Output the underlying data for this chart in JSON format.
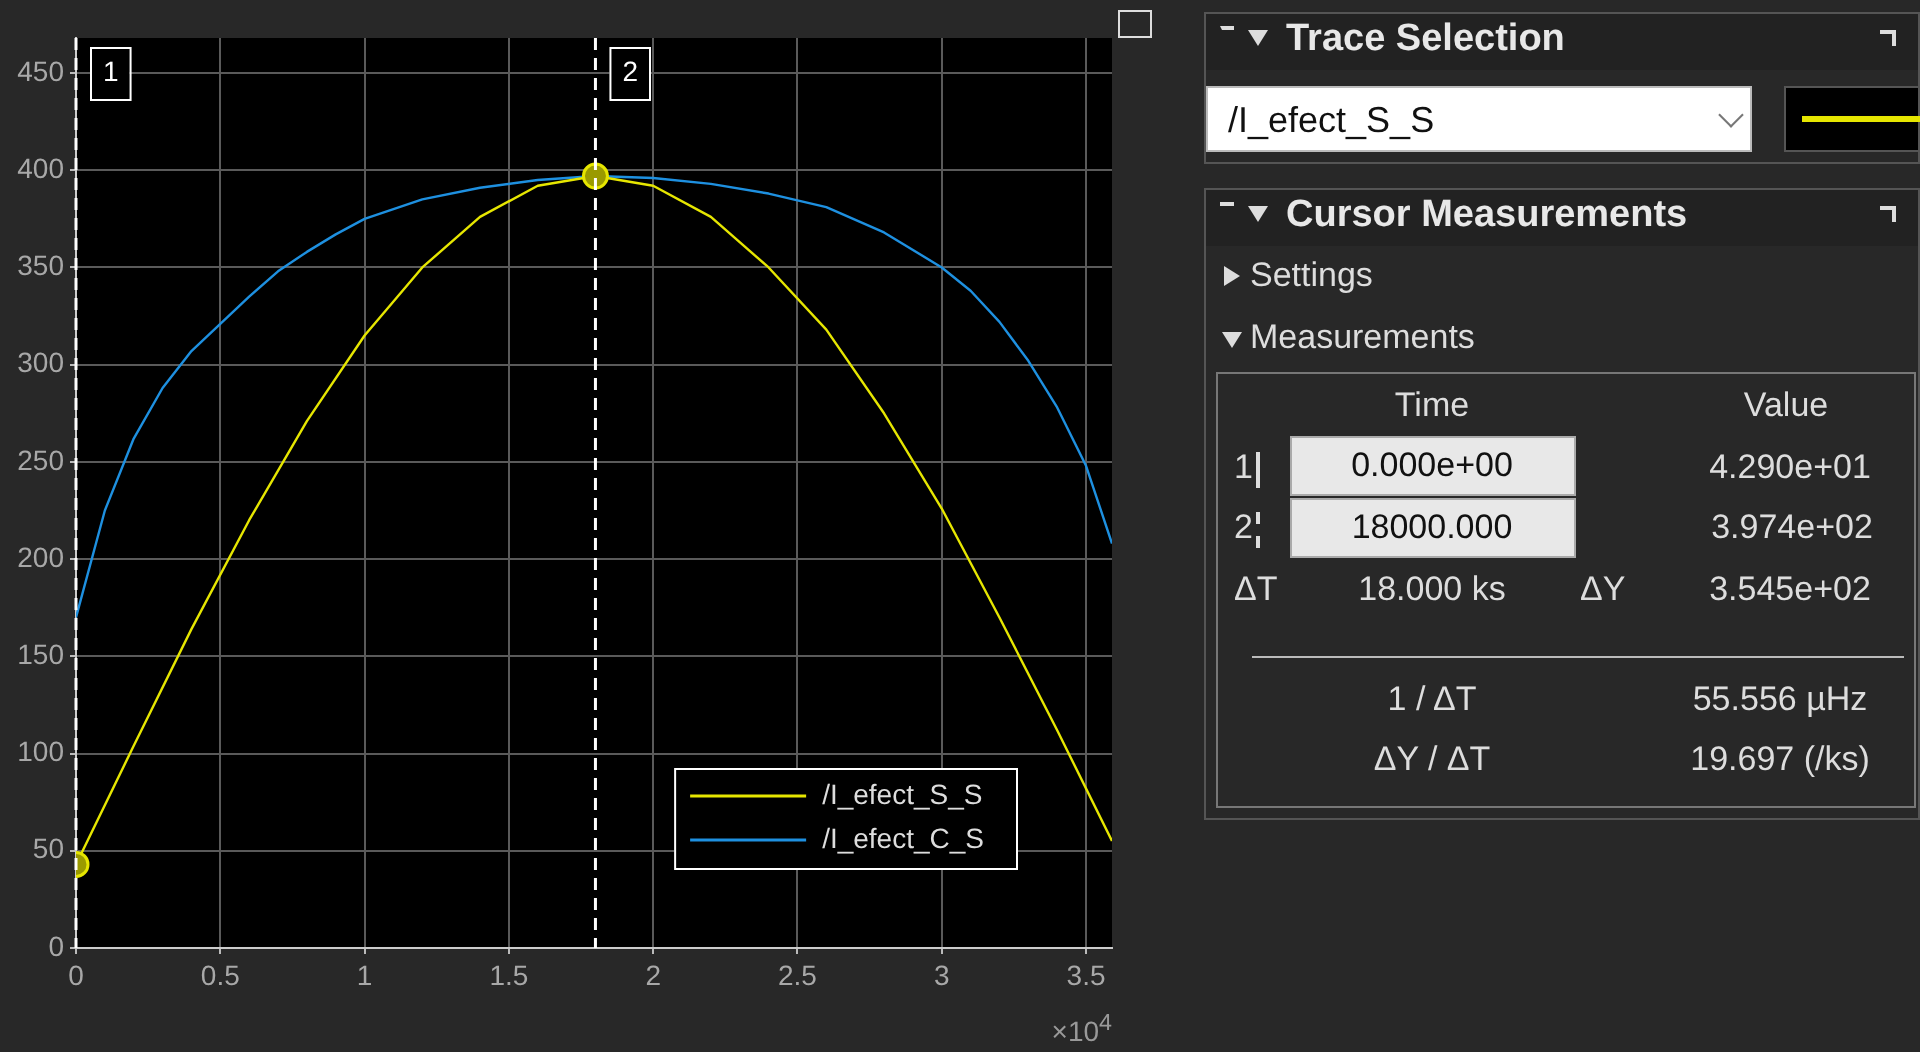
{
  "chart_data": [
    {
      "type": "line",
      "xlim": [
        0,
        3.59
      ],
      "ylim": [
        0,
        468
      ],
      "xticks": [
        0,
        0.5,
        1,
        1.5,
        2,
        2.5,
        3,
        3.5
      ],
      "yticks": [
        0,
        50,
        100,
        150,
        200,
        250,
        300,
        350,
        400,
        450
      ],
      "grid": true,
      "legend": "bottom right",
      "marker": "none",
      "line_style": "solid",
      "series": [
        {
          "name": "/I_efect_S_S",
          "color": "#e6e600",
          "x": [
            0,
            0.2,
            0.4,
            0.6,
            0.8,
            1,
            1.2,
            1.4,
            1.6,
            1.8,
            2,
            2.2,
            2.4,
            2.6,
            2.8,
            3,
            3.2,
            3.4,
            3.59
          ],
          "values": [
            43,
            104,
            164,
            220,
            271,
            315,
            350,
            376,
            392,
            397,
            392,
            376,
            350,
            318,
            275,
            226,
            170,
            112,
            55
          ]
        },
        {
          "name": "/I_efect_C_S",
          "color": "#1e90e0",
          "x": [
            0,
            0.1,
            0.2,
            0.3,
            0.4,
            0.5,
            0.6,
            0.7,
            0.8,
            0.9,
            1,
            1.2,
            1.4,
            1.6,
            1.8,
            2,
            2.2,
            2.4,
            2.6,
            2.8,
            3,
            3.1,
            3.2,
            3.3,
            3.4,
            3.5,
            3.59
          ],
          "values": [
            170,
            225,
            262,
            288,
            307,
            321,
            335,
            348,
            358,
            367,
            375,
            385,
            391,
            395,
            397,
            396,
            393,
            388,
            381,
            368,
            350,
            338,
            322,
            302,
            278,
            248,
            208
          ]
        },
        {
          "type": "scatter",
          "marker": "circle",
          "color": "#9a9a00",
          "x": [
            0,
            1.8
          ],
          "values": [
            43,
            397
          ]
        }
      ],
      "ref_lines": [
        {
          "axis": "x",
          "value": 0,
          "line_style": "dashed",
          "color": "#ffffff"
        },
        {
          "axis": "x",
          "value": 1.8,
          "line_style": "dashed",
          "color": "#ffffff"
        }
      ],
      "annotations": [
        {
          "text": "1",
          "x": 0,
          "y": 450
        },
        {
          "text": "2",
          "x": 1.8,
          "y": 450
        },
        "×10$^{4}$"
      ]
    },
    {
      "type": "other",
      "title": "Trace Selection",
      "subtitle": "Cursor Measurements",
      "annotations": [
        "/I_efect_S_S",
        "Settings",
        "Measurements",
        "Time",
        "Value",
        "1",
        "0.000e+00",
        "4.290e+01",
        "2",
        "18000.000",
        "3.974e+02",
        "ΔT",
        "18.000 ks",
        "ΔY",
        "3.545e+02",
        "1 / ΔT",
        "55.556 µHz",
        "ΔY / ΔT",
        "19.697 (/ks)"
      ]
    }
  ]
}
